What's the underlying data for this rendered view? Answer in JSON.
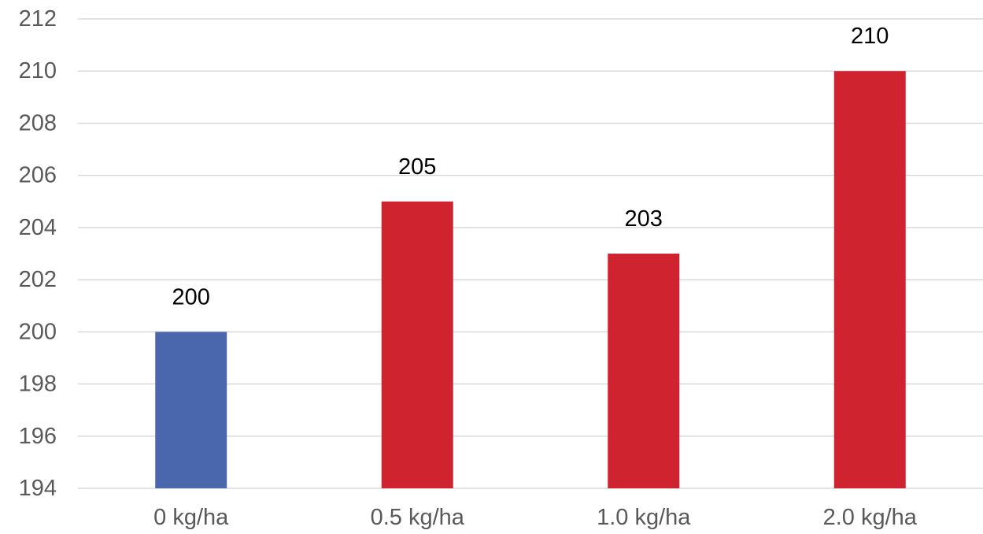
{
  "chart_data": {
    "type": "bar",
    "title": "",
    "xlabel": "",
    "ylabel": "",
    "categories": [
      "0 kg/ha",
      "0.5 kg/ha",
      "1.0 kg/ha",
      "2.0 kg/ha"
    ],
    "values": [
      200,
      205,
      203,
      210
    ],
    "ylim": [
      194,
      212
    ],
    "yticks": [
      194,
      196,
      198,
      200,
      202,
      204,
      206,
      208,
      210,
      212
    ],
    "grid": true,
    "legend": "none",
    "data_labels": true,
    "bar_colors": [
      "#4a67ad",
      "#cf2430",
      "#cf2430",
      "#cf2430"
    ],
    "colors": {
      "grid": "#d9d9d9",
      "tick_text": "#595959",
      "label_text": "#000000"
    }
  }
}
